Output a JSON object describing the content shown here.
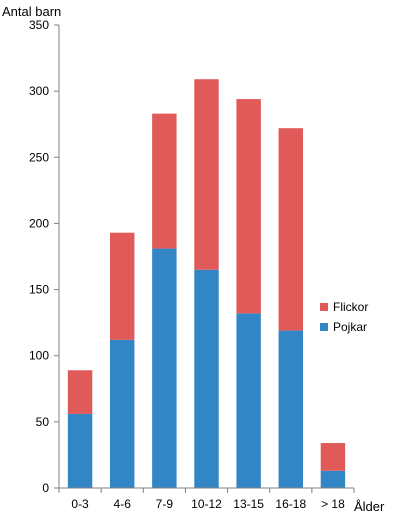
{
  "chart_data": {
    "type": "bar",
    "stacked": true,
    "ylabel": "Antal barn",
    "xlabel": "Ålder",
    "categories": [
      "0-3",
      "4-6",
      "7-9",
      "10-12",
      "13-15",
      "16-18",
      "> 18"
    ],
    "series": [
      {
        "name": "Pojkar",
        "color": "#3386c6",
        "values": [
          56,
          112,
          181,
          165,
          132,
          119,
          13
        ]
      },
      {
        "name": "Flickor",
        "color": "#e05a5a",
        "values": [
          33,
          81,
          102,
          144,
          162,
          153,
          21
        ]
      }
    ],
    "ylim": [
      0,
      350
    ],
    "yticks": [
      "0",
      "50",
      "100",
      "150",
      "200",
      "250",
      "300",
      "350"
    ],
    "grid": false,
    "legend_position": "right",
    "legend_order": [
      "Flickor",
      "Pojkar"
    ]
  }
}
